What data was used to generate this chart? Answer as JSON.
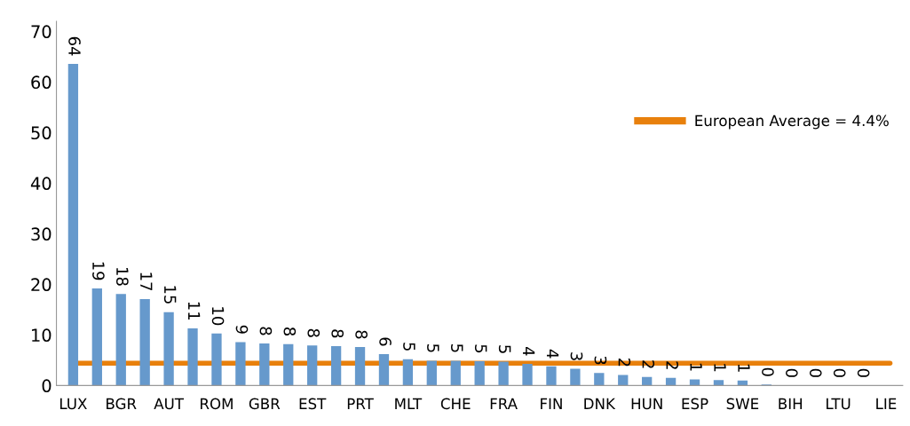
{
  "chart_data": {
    "type": "bar",
    "categories": [
      "LUX",
      null,
      "BGR",
      null,
      "AUT",
      null,
      "ROM",
      null,
      "GBR",
      null,
      "EST",
      null,
      "PRT",
      null,
      "MLT",
      null,
      "CHE",
      null,
      "FRA",
      null,
      "FIN",
      null,
      "DNK",
      null,
      "HUN",
      null,
      "ESP",
      null,
      "SWE",
      null,
      "BIH",
      null,
      "LTU",
      null,
      "LIE"
    ],
    "values": [
      63.6,
      19.2,
      18.1,
      17.1,
      14.5,
      11.3,
      10.3,
      8.6,
      8.3,
      8.2,
      7.9,
      7.8,
      7.6,
      6.2,
      5.2,
      4.9,
      4.9,
      4.8,
      4.7,
      4.3,
      3.8,
      3.3,
      2.5,
      2.1,
      1.7,
      1.5,
      1.2,
      1.1,
      1.0,
      0.2,
      0,
      0,
      0,
      0,
      null
    ],
    "value_labels": [
      "64",
      "19",
      "18",
      "17",
      "15",
      "11",
      "10",
      "9",
      "8",
      "8",
      "8",
      "8",
      "8",
      "6",
      "5",
      "5",
      "5",
      "5",
      "5",
      "4",
      "4",
      "3",
      "3",
      "2",
      "2",
      "2",
      "1",
      "1",
      "1",
      "0",
      "0",
      "0",
      "0",
      "0",
      null
    ],
    "color": "#6699cc",
    "ylim": [
      0,
      72
    ],
    "yticks": [
      0,
      10,
      20,
      30,
      40,
      50,
      60,
      70
    ],
    "ref_lines": [
      {
        "axis": "y",
        "value": 4.4,
        "label": "European Average = 4.4%",
        "color": "#e8800c"
      }
    ],
    "legend": "right",
    "grid": false
  }
}
